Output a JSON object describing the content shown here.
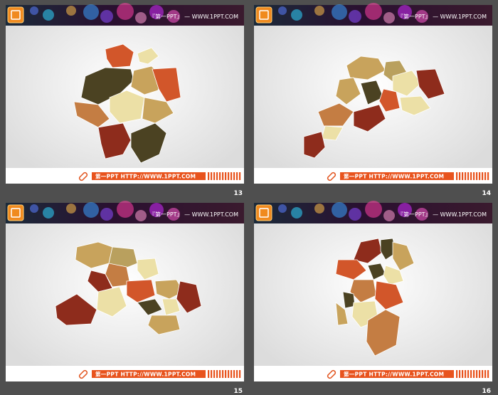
{
  "slides": [
    {
      "number": "13",
      "header": "『第一PPT』 — WWW.1PPT.COM",
      "footer": "第一PPT HTTP://WWW.1PPT.COM"
    },
    {
      "number": "14",
      "header": "『第一PPT』 — WWW.1PPT.COM",
      "footer": "第一PPT HTTP://WWW.1PPT.COM"
    },
    {
      "number": "15",
      "header": "『第一PPT』 — WWW.1PPT.COM",
      "footer": "第一PPT HTTP://WWW.1PPT.COM"
    },
    {
      "number": "16",
      "header": "『第一PPT』 — WWW.1PPT.COM",
      "footer": "第一PPT HTTP://WWW.1PPT.COM"
    }
  ]
}
